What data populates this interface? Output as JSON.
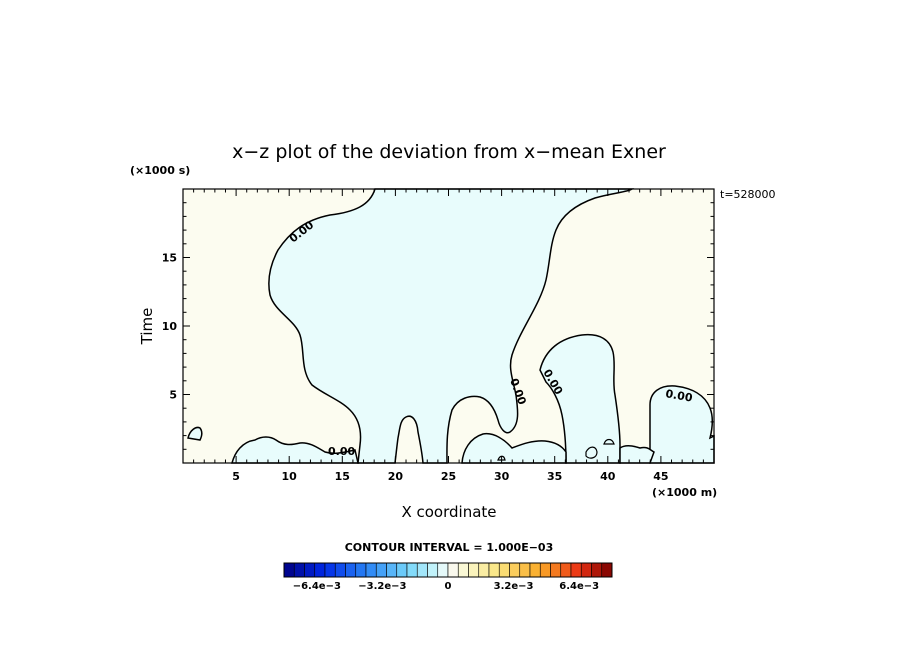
{
  "chart_data": {
    "type": "heatmap",
    "title": "x−z plot of the deviation from x−mean Exner",
    "xlabel": "X coordinate",
    "ylabel": "Time",
    "x_unit": "(×1000 m)",
    "y_unit": "(×1000 s)",
    "time_stamp": "t=528000",
    "xlim": [
      0,
      50
    ],
    "ylim": [
      0,
      20
    ],
    "x_ticks": [
      5,
      10,
      15,
      20,
      25,
      30,
      35,
      40,
      45
    ],
    "y_ticks": [
      5,
      10,
      15
    ],
    "contour_interval": "CONTOUR INTERVAL = 1.000E−03",
    "contour_labels": [
      "0.00",
      "0.00",
      "0.00",
      "0.00",
      "0.00"
    ],
    "colorbar": {
      "min": -0.008,
      "max": 0.008,
      "n_levels": 32,
      "tick_labels": [
        "−6.4e−3",
        "−3.2e−3",
        "0",
        "3.2e−3",
        "6.4e−3"
      ],
      "tick_values": [
        -0.0064,
        -0.0032,
        0,
        0.0032,
        0.0064
      ]
    },
    "colors": {
      "positive_fill": "#fcfcf0",
      "negative_fill": "#e8fcfc"
    }
  }
}
